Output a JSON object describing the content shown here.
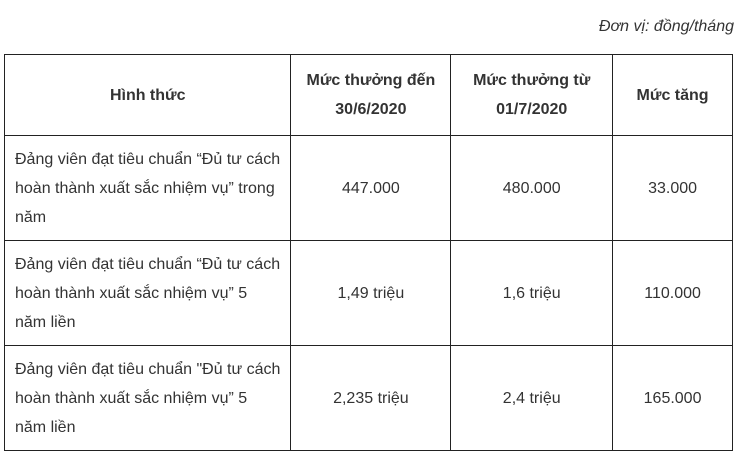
{
  "unit_note": "Đơn vị: đồng/tháng",
  "table": {
    "headers": [
      "Hình thức",
      "Mức thưởng đến 30/6/2020",
      "Mức thưởng từ 01/7/2020",
      "Mức tăng"
    ],
    "rows": [
      [
        "Đảng viên đạt tiêu chuẩn “Đủ tư cách hoàn thành xuất sắc nhiệm vụ” trong năm",
        "447.000",
        "480.000",
        "33.000"
      ],
      [
        "Đảng viên đạt tiêu chuẩn “Đủ tư cách hoàn thành xuất sắc nhiệm vụ” 5 năm liền",
        "1,49 triệu",
        "1,6 triệu",
        "110.000"
      ],
      [
        "Đảng viên đạt tiêu chuẩn \"Đủ tư cách hoàn thành xuất sắc nhiệm vụ” 5 năm liền",
        "2,235 triệu",
        "2,4 triệu",
        "165.000"
      ]
    ]
  }
}
